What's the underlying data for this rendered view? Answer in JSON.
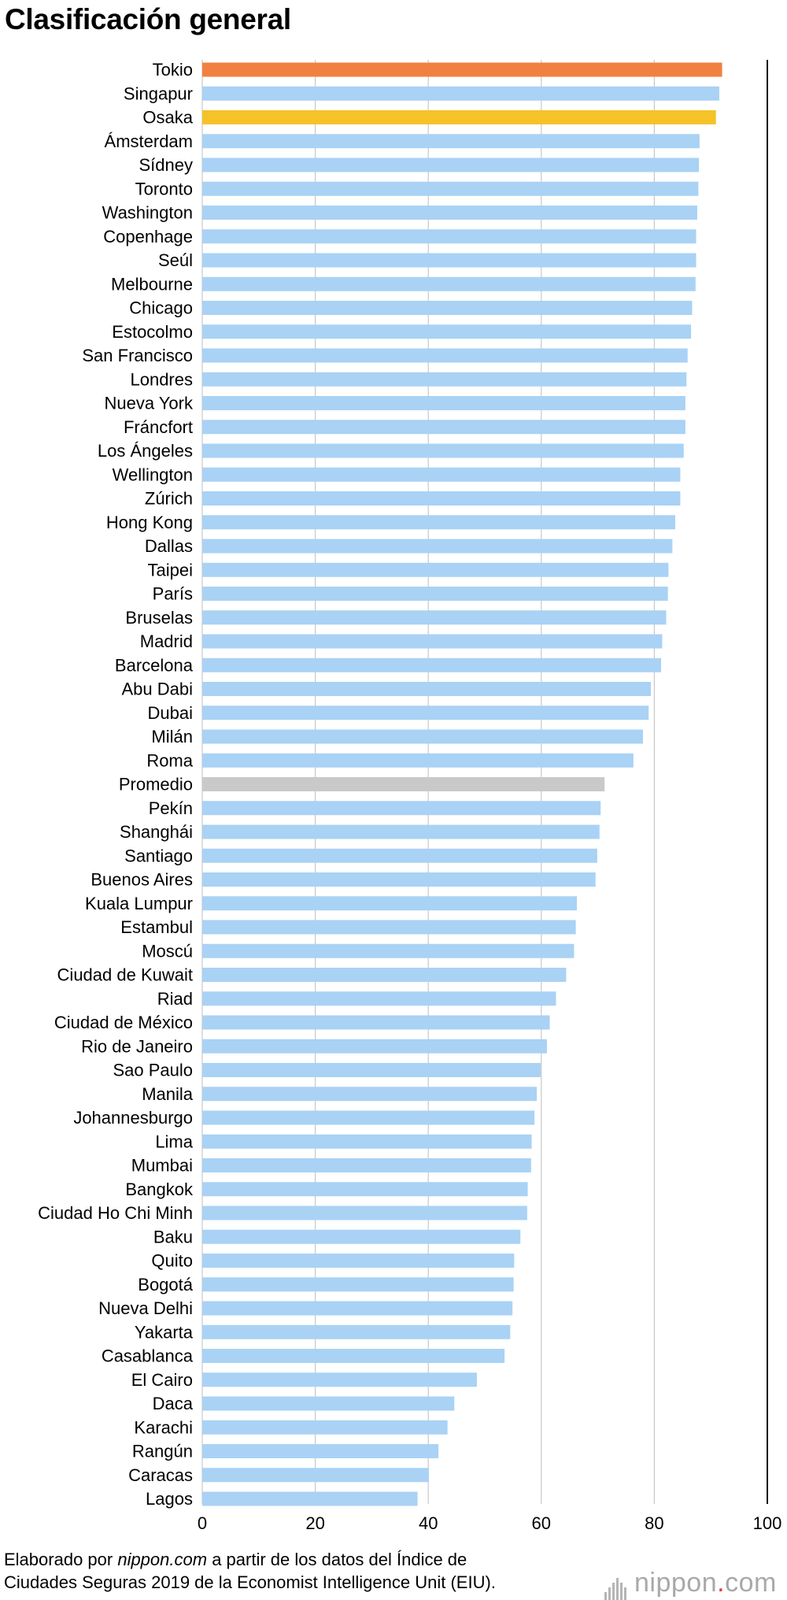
{
  "chart_data": {
    "type": "bar",
    "orientation": "horizontal",
    "title": "Clasificación general",
    "xlim": [
      0,
      100
    ],
    "xticks": [
      0,
      20,
      40,
      60,
      80,
      100
    ],
    "grid": true,
    "colors": {
      "default": "#a9d2f5",
      "highlight_1": "#f08140",
      "highlight_2": "#f5c22a",
      "average": "#c9c9c9"
    },
    "categories": [
      "Tokio",
      "Singapur",
      "Osaka",
      "Ámsterdam",
      "Sídney",
      "Toronto",
      "Washington",
      "Copenhage",
      "Seúl",
      "Melbourne",
      "Chicago",
      "Estocolmo",
      "San Francisco",
      "Londres",
      "Nueva York",
      "Fráncfort",
      "Los Ángeles",
      "Wellington",
      "Zúrich",
      "Hong Kong",
      "Dallas",
      "Taipei",
      "París",
      "Bruselas",
      "Madrid",
      "Barcelona",
      "Abu Dabi",
      "Dubai",
      "Milán",
      "Roma",
      "Promedio",
      "Pekín",
      "Shanghái",
      "Santiago",
      "Buenos Aires",
      "Kuala Lumpur",
      "Estambul",
      "Moscú",
      "Ciudad de Kuwait",
      "Riad",
      "Ciudad de México",
      "Rio de Janeiro",
      "Sao Paulo",
      "Manila",
      "Johannesburgo",
      "Lima",
      "Mumbai",
      "Bangkok",
      "Ciudad Ho Chi Minh",
      "Baku",
      "Quito",
      "Bogotá",
      "Nueva Delhi",
      "Yakarta",
      "Casablanca",
      "El Cairo",
      "Daca",
      "Karachi",
      "Rangún",
      "Caracas",
      "Lagos"
    ],
    "values": [
      92.0,
      91.5,
      90.9,
      88.0,
      87.9,
      87.8,
      87.6,
      87.4,
      87.4,
      87.3,
      86.7,
      86.5,
      85.9,
      85.7,
      85.5,
      85.5,
      85.2,
      84.6,
      84.6,
      83.7,
      83.2,
      82.5,
      82.4,
      82.1,
      81.4,
      81.2,
      79.4,
      79.0,
      78.0,
      76.3,
      71.2,
      70.5,
      70.3,
      69.9,
      69.6,
      66.3,
      66.1,
      65.8,
      64.4,
      62.6,
      61.5,
      61.0,
      59.9,
      59.2,
      58.8,
      58.3,
      58.2,
      57.6,
      57.5,
      56.3,
      55.2,
      55.1,
      54.9,
      54.5,
      53.5,
      48.6,
      44.6,
      43.4,
      41.8,
      40.1,
      38.1
    ],
    "highlights": {
      "Tokio": "highlight_1",
      "Osaka": "highlight_2",
      "Promedio": "average"
    }
  },
  "footer": {
    "line1_prefix": "Elaborado por ",
    "line1_source": "nippon.com",
    "line1_suffix": " a partir de los datos del Índice de",
    "line2": "Ciudades Seguras 2019 de la Economist Intelligence Unit (EIU).",
    "brand_name": "nippon",
    "brand_dot": ".",
    "brand_tld": "com"
  }
}
